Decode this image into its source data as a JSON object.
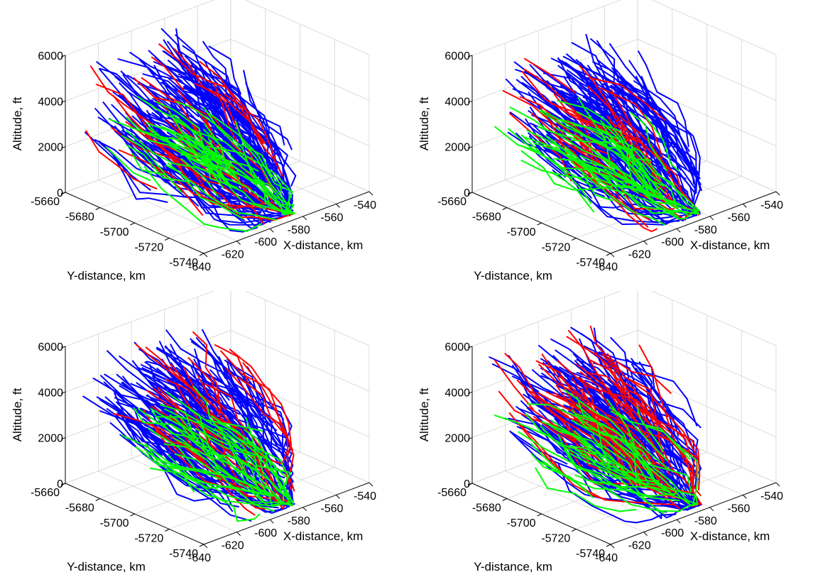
{
  "chart_data": [
    {
      "type": "line",
      "x_label": "X-distance, km",
      "y_label": "Y-distance, km",
      "z_label": "Altitude, ft",
      "x_range": [
        -640,
        -540
      ],
      "y_range": [
        -5740,
        -5660
      ],
      "z_range": [
        0,
        6000
      ],
      "x_ticks": [
        "-640",
        "-620",
        "-600",
        "-580",
        "-560",
        "-540"
      ],
      "y_ticks": [
        "-5660",
        "-5680",
        "-5700",
        "-5720",
        "-5740"
      ],
      "z_ticks": [
        "0",
        "2000",
        "4000",
        "6000"
      ],
      "grid": true,
      "series_colors": [
        "#0000ff",
        "#ff0000",
        "#00ff00"
      ],
      "series_weights": [
        0.74,
        0.13,
        0.13
      ],
      "track_count": 260,
      "seed": 11
    },
    {
      "type": "line",
      "x_label": "X-distance, km",
      "y_label": "Y-distance, km",
      "z_label": "Altitude, ft",
      "x_range": [
        -640,
        -540
      ],
      "y_range": [
        -5740,
        -5660
      ],
      "z_range": [
        0,
        6000
      ],
      "x_ticks": [
        "-640",
        "-620",
        "-600",
        "-580",
        "-560",
        "-540"
      ],
      "y_ticks": [
        "-5660",
        "-5680",
        "-5700",
        "-5720",
        "-5740"
      ],
      "z_ticks": [
        "0",
        "2000",
        "4000",
        "6000"
      ],
      "grid": true,
      "series_colors": [
        "#0000ff",
        "#ff0000",
        "#00ff00"
      ],
      "series_weights": [
        0.72,
        0.15,
        0.13
      ],
      "track_count": 240,
      "seed": 27
    },
    {
      "type": "line",
      "x_label": "X-distance, km",
      "y_label": "Y-distance, km",
      "z_label": "Altitude, ft",
      "x_range": [
        -640,
        -540
      ],
      "y_range": [
        -5740,
        -5660
      ],
      "z_range": [
        0,
        6000
      ],
      "x_ticks": [
        "-640",
        "-620",
        "-600",
        "-580",
        "-560",
        "-540"
      ],
      "y_ticks": [
        "-5660",
        "-5680",
        "-5700",
        "-5720",
        "-5740"
      ],
      "z_ticks": [
        "0",
        "2000",
        "4000",
        "6000"
      ],
      "grid": true,
      "series_colors": [
        "#0000ff",
        "#ff0000",
        "#00ff00"
      ],
      "series_weights": [
        0.66,
        0.16,
        0.18
      ],
      "track_count": 240,
      "seed": 43
    },
    {
      "type": "line",
      "x_label": "X-distance, km",
      "y_label": "Y-distance, km",
      "z_label": "Altitude, ft",
      "x_range": [
        -640,
        -540
      ],
      "y_range": [
        -5740,
        -5660
      ],
      "z_range": [
        0,
        6000
      ],
      "x_ticks": [
        "-640",
        "-620",
        "-600",
        "-580",
        "-560",
        "-540"
      ],
      "y_ticks": [
        "-5660",
        "-5680",
        "-5700",
        "-5720",
        "-5740"
      ],
      "z_ticks": [
        "0",
        "2000",
        "4000",
        "6000"
      ],
      "grid": true,
      "series_colors": [
        "#0000ff",
        "#ff0000",
        "#00ff00"
      ],
      "series_weights": [
        0.68,
        0.18,
        0.14
      ],
      "track_count": 270,
      "seed": 71
    }
  ]
}
